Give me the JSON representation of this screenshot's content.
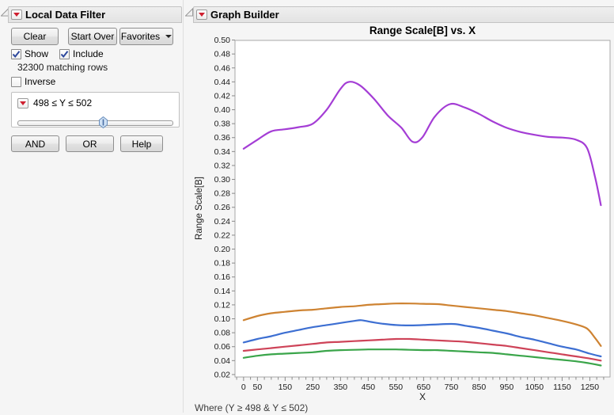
{
  "local_data_filter": {
    "title": "Local Data Filter",
    "buttons": {
      "clear": "Clear",
      "start_over": "Start Over",
      "favorites": "Favorites"
    },
    "checkboxes": {
      "show": {
        "label": "Show",
        "checked": true
      },
      "include": {
        "label": "Include",
        "checked": true
      },
      "inverse": {
        "label": "Inverse",
        "checked": false
      }
    },
    "matching_rows": "32300 matching rows",
    "filter": {
      "expression": "498 ≤ Y ≤ 502",
      "slider_percent": 55
    },
    "logic_buttons": {
      "and": "AND",
      "or": "OR",
      "help": "Help"
    }
  },
  "graph_builder": {
    "title": "Graph Builder",
    "where_clause": "Where (Y ≥ 498 & Y ≤ 502)"
  },
  "chart_data": {
    "type": "line",
    "title": "Range Scale[B] vs. X",
    "xlabel": "X",
    "ylabel": "Range Scale[B]",
    "xlim": [
      -31,
      1323
    ],
    "ylim": [
      0.0165,
      0.4995
    ],
    "grid": false,
    "legend": "none",
    "x_tick_labels": [
      0,
      50,
      150,
      250,
      350,
      450,
      550,
      650,
      750,
      850,
      950,
      1050,
      1150,
      1250
    ],
    "x_minor_tick_step": 25,
    "y_ticks": {
      "min": 0.02,
      "max": 0.5,
      "step": 0.02,
      "decimals": 2
    },
    "series": [
      {
        "name": "purple-line",
        "color": "#a43dd5",
        "x": [
          0,
          50,
          100,
          150,
          200,
          250,
          300,
          350,
          380,
          420,
          470,
          520,
          570,
          610,
          645,
          690,
          745,
          800,
          850,
          900,
          950,
          1000,
          1050,
          1100,
          1150,
          1200,
          1240,
          1268,
          1290
        ],
        "y": [
          0.344,
          0.357,
          0.369,
          0.372,
          0.375,
          0.38,
          0.4,
          0.43,
          0.44,
          0.435,
          0.416,
          0.392,
          0.374,
          0.354,
          0.36,
          0.39,
          0.408,
          0.403,
          0.394,
          0.383,
          0.374,
          0.368,
          0.364,
          0.361,
          0.36,
          0.357,
          0.345,
          0.305,
          0.263
        ]
      },
      {
        "name": "orange-line",
        "color": "#ce8332",
        "x": [
          0,
          50,
          100,
          150,
          200,
          250,
          300,
          350,
          400,
          450,
          500,
          550,
          600,
          650,
          700,
          750,
          800,
          850,
          900,
          950,
          1000,
          1050,
          1100,
          1150,
          1200,
          1240,
          1268,
          1290
        ],
        "y": [
          0.098,
          0.104,
          0.108,
          0.11,
          0.112,
          0.113,
          0.115,
          0.117,
          0.118,
          0.12,
          0.121,
          0.122,
          0.122,
          0.1215,
          0.121,
          0.119,
          0.117,
          0.115,
          0.113,
          0.111,
          0.108,
          0.105,
          0.101,
          0.097,
          0.092,
          0.086,
          0.073,
          0.061
        ]
      },
      {
        "name": "blue-line",
        "color": "#3d6fd2",
        "x": [
          0,
          50,
          100,
          150,
          200,
          250,
          300,
          350,
          400,
          425,
          460,
          500,
          550,
          600,
          650,
          700,
          760,
          800,
          850,
          900,
          950,
          1000,
          1050,
          1100,
          1150,
          1200,
          1250,
          1290
        ],
        "y": [
          0.066,
          0.071,
          0.075,
          0.08,
          0.084,
          0.088,
          0.091,
          0.094,
          0.097,
          0.098,
          0.0955,
          0.093,
          0.091,
          0.0905,
          0.091,
          0.092,
          0.0925,
          0.09,
          0.087,
          0.083,
          0.079,
          0.074,
          0.07,
          0.065,
          0.06,
          0.056,
          0.05,
          0.046
        ]
      },
      {
        "name": "red-line",
        "color": "#ce4358",
        "x": [
          0,
          50,
          100,
          150,
          200,
          250,
          300,
          350,
          400,
          450,
          500,
          550,
          600,
          650,
          700,
          750,
          800,
          850,
          900,
          950,
          1000,
          1050,
          1100,
          1150,
          1200,
          1250,
          1290
        ],
        "y": [
          0.054,
          0.056,
          0.058,
          0.06,
          0.062,
          0.064,
          0.066,
          0.067,
          0.068,
          0.069,
          0.07,
          0.071,
          0.071,
          0.07,
          0.069,
          0.068,
          0.067,
          0.065,
          0.063,
          0.061,
          0.058,
          0.055,
          0.052,
          0.049,
          0.046,
          0.043,
          0.04
        ]
      },
      {
        "name": "green-line",
        "color": "#3aa54a",
        "x": [
          0,
          50,
          100,
          150,
          200,
          250,
          300,
          350,
          400,
          450,
          500,
          550,
          600,
          650,
          700,
          750,
          800,
          850,
          900,
          950,
          1000,
          1050,
          1100,
          1150,
          1200,
          1250,
          1290
        ],
        "y": [
          0.044,
          0.047,
          0.049,
          0.05,
          0.051,
          0.052,
          0.054,
          0.055,
          0.0555,
          0.056,
          0.056,
          0.056,
          0.0555,
          0.055,
          0.055,
          0.054,
          0.053,
          0.052,
          0.051,
          0.049,
          0.047,
          0.045,
          0.043,
          0.041,
          0.039,
          0.036,
          0.033
        ]
      }
    ]
  }
}
